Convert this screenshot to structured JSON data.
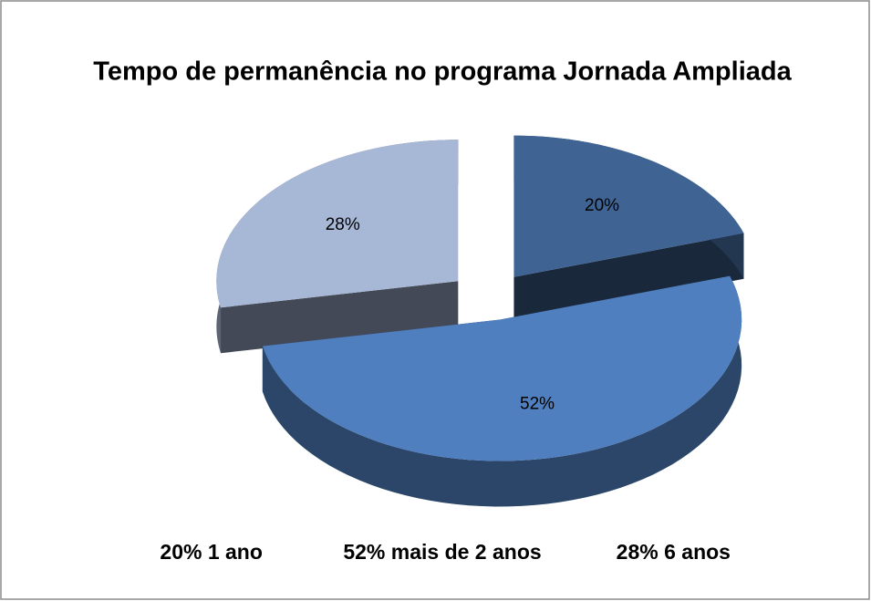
{
  "chart_data": {
    "type": "pie",
    "title": "Tempo de permanência  no programa Jornada Ampliada",
    "categories": [
      "20% 1 ano",
      "52% mais de 2 anos",
      "28% 6 anos"
    ],
    "values": [
      20,
      52,
      28
    ],
    "value_labels": [
      "20%",
      "52%",
      "28%"
    ],
    "colors": [
      "#3f6494",
      "#4f7fbf",
      "#a7b7d6"
    ],
    "legend": "bottom"
  }
}
